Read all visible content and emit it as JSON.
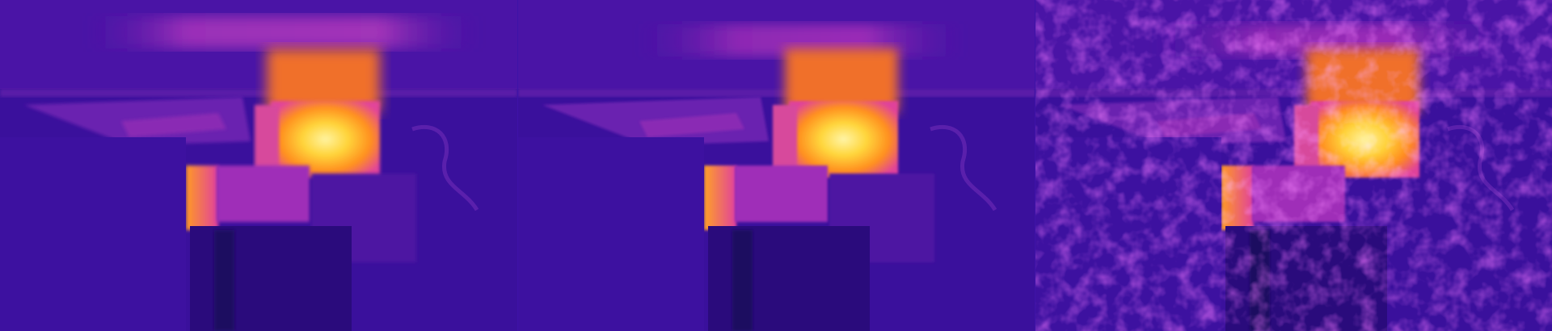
{
  "image": {
    "kind": "thermal-camera-triptych",
    "palette": "inferno",
    "panels": [
      {
        "label": "",
        "texture": "smooth"
      },
      {
        "label": "",
        "texture": "smooth-sharper"
      },
      {
        "label": "",
        "texture": "noisy"
      }
    ],
    "colors": {
      "cold": "#2c0c86",
      "cool": "#4a129f",
      "mid": "#8a1bb0",
      "warm": "#e0399a",
      "hot": "#ff8a1f",
      "hottest": "#fff07a"
    }
  }
}
